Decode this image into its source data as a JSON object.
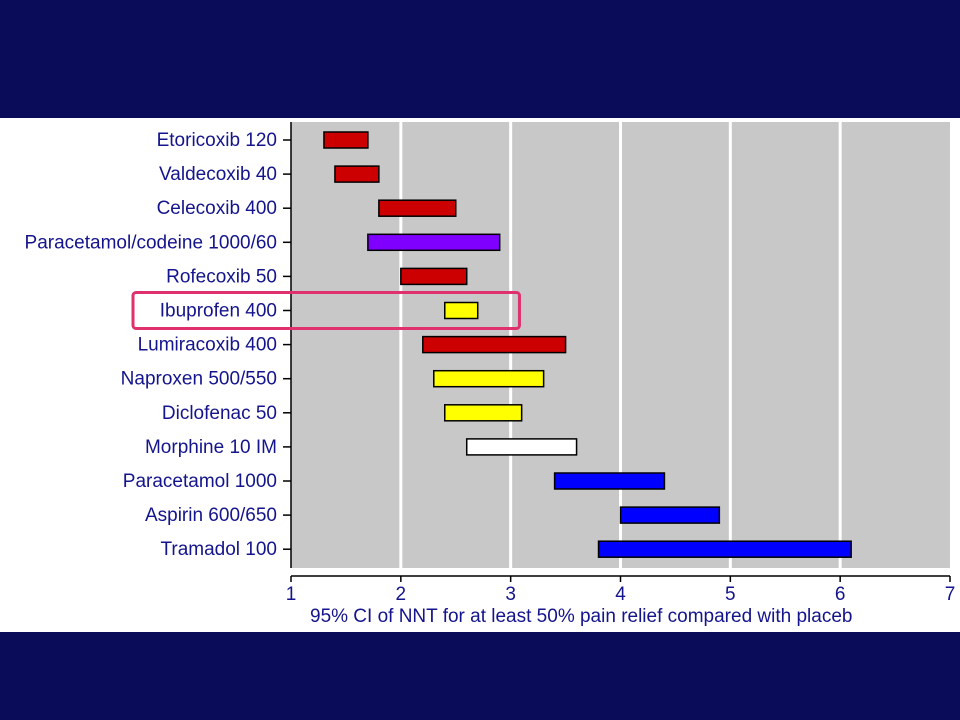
{
  "chart_data": {
    "type": "bar",
    "orientation": "horizontal-range",
    "xlabel": "95% CI of NNT for at least 50% pain relief compared with placeb",
    "xlim": [
      1,
      7
    ],
    "xticks": [
      "1",
      "2",
      "3",
      "4",
      "5",
      "6",
      "7"
    ],
    "grid": true,
    "categories": [
      "Etoricoxib 120",
      "Valdecoxib 40",
      "Celecoxib 400",
      "Paracetamol/codeine 1000/60",
      "Rofecoxib 50",
      "Ibuprofen 400",
      "Lumiracoxib 400",
      "Naproxen 500/550",
      "Diclofenac 50",
      "Morphine 10 IM",
      "Paracetamol 1000",
      "Aspirin 600/650",
      "Tramadol 100"
    ],
    "ranges": [
      [
        1.3,
        1.7
      ],
      [
        1.4,
        1.8
      ],
      [
        1.8,
        2.5
      ],
      [
        1.7,
        2.9
      ],
      [
        2.0,
        2.6
      ],
      [
        2.4,
        2.7
      ],
      [
        2.2,
        3.5
      ],
      [
        2.3,
        3.3
      ],
      [
        2.4,
        3.1
      ],
      [
        2.6,
        3.6
      ],
      [
        3.4,
        4.4
      ],
      [
        4.0,
        4.9
      ],
      [
        3.8,
        6.1
      ]
    ],
    "colors": [
      "#cc0000",
      "#cc0000",
      "#cc0000",
      "#7f00ff",
      "#cc0000",
      "#ffff00",
      "#cc0000",
      "#ffff00",
      "#ffff00",
      "#ffffff",
      "#0000ff",
      "#0000ff",
      "#0000ff"
    ],
    "highlight": {
      "category": "Ibuprofen 400",
      "color": "#e0306e"
    },
    "plot_background": "#c8c8c8"
  }
}
